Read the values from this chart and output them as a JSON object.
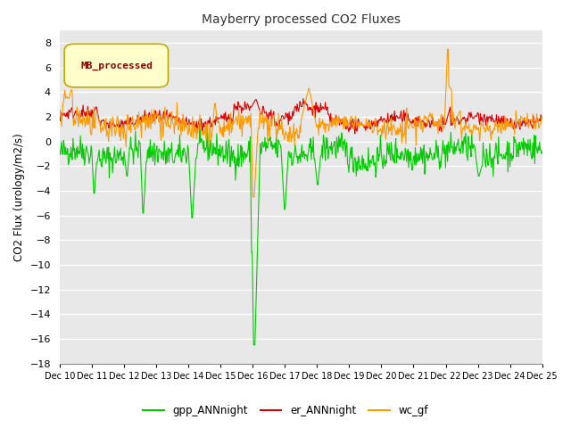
{
  "title": "Mayberry processed CO2 Fluxes",
  "ylabel": "CO2 Flux (urology/m2/s)",
  "ylim": [
    -18,
    9
  ],
  "yticks": [
    -18,
    -16,
    -14,
    -12,
    -10,
    -8,
    -6,
    -4,
    -2,
    0,
    2,
    4,
    6,
    8
  ],
  "xticklabels": [
    "Dec 10",
    "Dec 11",
    "Dec 12",
    "Dec 13",
    "Dec 14",
    "Dec 15",
    "Dec 16",
    "Dec 17",
    "Dec 18",
    "Dec 19",
    "Dec 20",
    "Dec 21",
    "Dec 22",
    "Dec 23",
    "Dec 24",
    "Dec 25"
  ],
  "color_gpp": "#00cc00",
  "color_er": "#dd0000",
  "color_wc": "#ff9900",
  "legend_label": "MB_processed",
  "legend_bg": "#ffffcc",
  "legend_border": "#bbaa00",
  "legend_text_color": "#880000",
  "plot_bg": "#e8e8e8",
  "fig_bg": "#ffffff",
  "grid_color": "#ffffff",
  "n_points": 720,
  "seed": 42
}
